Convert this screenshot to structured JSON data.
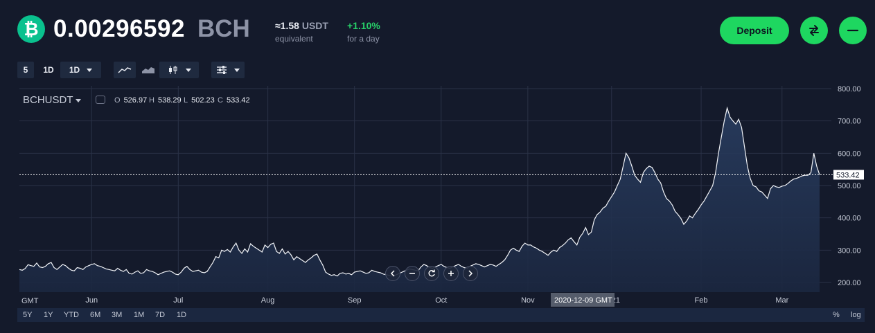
{
  "header": {
    "balance": "0.00296592",
    "currency": "BCH",
    "equivalent_value": "≈1.58",
    "equivalent_unit": "USDT",
    "equivalent_label": "equivalent",
    "change_value": "+1.10%",
    "change_label": "for a day",
    "deposit_label": "Deposit"
  },
  "toolbar": {
    "interval_5": "5",
    "interval_1d": "1D",
    "interval_select": "1D"
  },
  "legend": {
    "symbol": "BCHUSDT",
    "o_label": "O",
    "o_value": "526.97",
    "h_label": "H",
    "h_value": "538.29",
    "l_label": "L",
    "l_value": "502.23",
    "c_label": "C",
    "c_value": "533.42"
  },
  "range_buttons": [
    "5Y",
    "1Y",
    "YTD",
    "6M",
    "3M",
    "1M",
    "7D",
    "1D"
  ],
  "scale_buttons": {
    "percent": "%",
    "log": "log"
  },
  "timezone_label": "GMT",
  "crosshair_label": "2020-12-09 GMT",
  "last_price_label": "533.42",
  "colors": {
    "accent": "#1ed760",
    "positive": "#27d169",
    "background": "#141a2b",
    "coin": "#0ac18e"
  },
  "chart_data": {
    "type": "area",
    "title": "",
    "symbol": "BCHUSDT",
    "xlabel": "",
    "ylabel": "",
    "ylim": [
      170,
      800
    ],
    "y_ticks": [
      "800.00",
      "700.00",
      "600.00",
      "500.00",
      "400.00",
      "300.00",
      "200.00"
    ],
    "x_ticks": [
      "Jun",
      "Jul",
      "Aug",
      "Sep",
      "Oct",
      "Nov",
      "2021",
      "Feb",
      "Mar"
    ],
    "x_tick_index": [
      25,
      55,
      86,
      116,
      146,
      176,
      205,
      236,
      264
    ],
    "last_value": 533.42,
    "grid": true,
    "series": [
      {
        "values": [
          240,
          238,
          243,
          255,
          252,
          250,
          260,
          248,
          246,
          250,
          258,
          262,
          246,
          240,
          248,
          256,
          252,
          244,
          238,
          236,
          246,
          244,
          240,
          248,
          252,
          256,
          258,
          252,
          250,
          246,
          242,
          240,
          238,
          236,
          244,
          238,
          234,
          240,
          228,
          226,
          232,
          236,
          228,
          230,
          240,
          236,
          234,
          230,
          224,
          228,
          232,
          234,
          236,
          232,
          226,
          224,
          232,
          244,
          250,
          240,
          234,
          236,
          238,
          232,
          230,
          234,
          248,
          262,
          280,
          276,
          300,
          296,
          302,
          294,
          310,
          322,
          300,
          290,
          304,
          294,
          320,
          312,
          306,
          300,
          294,
          316,
          308,
          318,
          322,
          296,
          290,
          304,
          288,
          296,
          286,
          270,
          280,
          274,
          268,
          262,
          270,
          276,
          284,
          288,
          270,
          254,
          232,
          226,
          222,
          224,
          220,
          228,
          230,
          226,
          228,
          224,
          232,
          234,
          236,
          232,
          228,
          230,
          238,
          234,
          232,
          230,
          226,
          224,
          222,
          220,
          222,
          226,
          230,
          234,
          238,
          242,
          240,
          238,
          236,
          248,
          256,
          252,
          246,
          244,
          248,
          252,
          256,
          250,
          246,
          244,
          248,
          252,
          256,
          250,
          246,
          244,
          250,
          254,
          258,
          256,
          252,
          248,
          252,
          256,
          254,
          250,
          256,
          262,
          270,
          284,
          300,
          306,
          300,
          296,
          312,
          322,
          316,
          316,
          310,
          306,
          300,
          296,
          290,
          284,
          294,
          300,
          296,
          308,
          314,
          322,
          332,
          338,
          326,
          316,
          340,
          352,
          370,
          348,
          356,
          394,
          410,
          418,
          430,
          436,
          452,
          466,
          480,
          500,
          520,
          560,
          600,
          586,
          560,
          532,
          520,
          510,
          540,
          552,
          560,
          556,
          540,
          520,
          508,
          480,
          460,
          452,
          440,
          420,
          410,
          398,
          380,
          390,
          406,
          400,
          414,
          426,
          440,
          452,
          468,
          484,
          500,
          540,
          600,
          650,
          700,
          740,
          712,
          700,
          690,
          705,
          680,
          620,
          560,
          522,
          500,
          496,
          484,
          480,
          470,
          460,
          490,
          500,
          496,
          494,
          498,
          500,
          506,
          514,
          520,
          522,
          526,
          530,
          532,
          532,
          540,
          600,
          560,
          533.42
        ]
      }
    ]
  }
}
